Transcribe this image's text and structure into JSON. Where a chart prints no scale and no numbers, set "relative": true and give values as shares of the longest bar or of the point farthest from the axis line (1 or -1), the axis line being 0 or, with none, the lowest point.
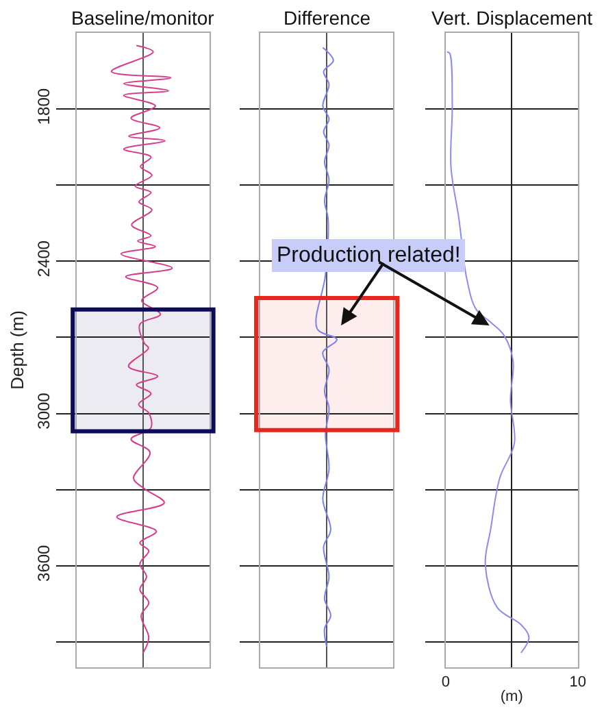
{
  "chart_data": [
    {
      "type": "line",
      "title": "Baseline/monitor",
      "ylabel": "Depth (m)",
      "relative": true,
      "orientation": "horizontal",
      "grid": "y",
      "tick_labels": "y",
      "ylim": [
        4000,
        1500
      ],
      "yticks": [
        1800,
        {
          "value": 2100,
          "label": null
        },
        2400,
        {
          "value": 2700,
          "label": null
        },
        3000,
        {
          "value": 3300,
          "label": null
        },
        3600,
        {
          "value": 3900,
          "label": null
        }
      ],
      "bands": [
        {
          "axis": "y",
          "from": 2590,
          "to": 3070,
          "color": "#0c0c5a"
        }
      ],
      "series": [
        {
          "color": "#d63d8a",
          "x": [
            1550,
            1575,
            1652,
            1677,
            1700,
            1728,
            1746,
            1788,
            1836,
            1874,
            1907,
            1925,
            1958,
            1989,
            2027,
            2061,
            2104,
            2129,
            2166,
            2197,
            2257,
            2299,
            2320,
            2342,
            2371,
            2427,
            2461,
            2504,
            2555,
            2609,
            2648,
            2723,
            2742,
            2814,
            2853,
            2887,
            2921,
            2964,
            2998,
            3056,
            3101,
            3153,
            3255,
            3296,
            3352,
            3407,
            3464,
            3509,
            3541,
            3592,
            3643,
            3694,
            3745,
            3796,
            3883,
            3943
          ],
          "values": [
            -0.21,
            0.32,
            -1.0,
            0.88,
            -0.61,
            0.8,
            -0.61,
            0.39,
            -0.38,
            0.53,
            -0.45,
            0.69,
            -0.61,
            0.25,
            -0.08,
            0.28,
            -0.25,
            0.25,
            -0.13,
            0.28,
            -0.36,
            0.25,
            -0.17,
            0.39,
            -0.7,
            0.92,
            -0.55,
            0.46,
            -0.04,
            0.55,
            -0.1,
            0.04,
            0.17,
            -0.46,
            0.46,
            -0.21,
            0.25,
            -0.14,
            0.18,
            0.25,
            -0.38,
            0.22,
            -0.3,
            0.04,
            0.67,
            -0.83,
            0.42,
            -0.1,
            0.18,
            -0.1,
            0.11,
            -0.1,
            0.18,
            -0.06,
            0.18,
            0
          ]
        }
      ]
    },
    {
      "type": "line",
      "title": "Difference",
      "relative": true,
      "orientation": "horizontal",
      "grid": "y",
      "tick_labels": false,
      "ylim": [
        4000,
        1500
      ],
      "yticks": [
        1800,
        {
          "value": 2100,
          "label": null
        },
        2400,
        {
          "value": 2700,
          "label": null
        },
        3000,
        {
          "value": 3300,
          "label": null
        },
        3600,
        {
          "value": 3900,
          "label": null
        }
      ],
      "bands": [
        {
          "axis": "y",
          "from": 2545,
          "to": 3065,
          "color": "#e8251f"
        }
      ],
      "annotations": [
        "Production related!"
      ],
      "series": [
        {
          "color": "#7b7ff0",
          "x": [
            1558,
            1609,
            1652,
            1703,
            1788,
            1839,
            1890,
            1942,
            2008,
            2079,
            2162,
            2233,
            2453,
            2666,
            2708,
            2759,
            2826,
            2912,
            2979,
            3081,
            3219,
            3337,
            3459,
            3525,
            3643,
            3730,
            3796,
            3848,
            3919
          ],
          "values": [
            -0.39,
            0.65,
            -0.31,
            0.22,
            -0.39,
            0.22,
            -0.31,
            0.22,
            -0.22,
            0.22,
            -0.22,
            0.13,
            -0.13,
            -0.95,
            1.0,
            -0.39,
            0.22,
            -0.22,
            0.22,
            -0.13,
            0.22,
            -0.39,
            0.39,
            -0.31,
            0.22,
            -0.22,
            0.39,
            -0.22,
            0
          ]
        }
      ]
    },
    {
      "type": "line",
      "title": "Vert. Displacement",
      "xlabel": "(m)",
      "orientation": "horizontal",
      "grid": true,
      "tick_labels": "x",
      "ylim": [
        4000,
        1500
      ],
      "yticks": [
        1800,
        {
          "value": 2100,
          "label": null
        },
        2400,
        {
          "value": 2700,
          "label": null
        },
        3000,
        {
          "value": 3300,
          "label": null
        },
        3600,
        {
          "value": 3900,
          "label": null
        }
      ],
      "xlim": [
        0,
        10
      ],
      "xticks": [
        0,
        {
          "value": 5,
          "label": null
        },
        10
      ],
      "series": [
        {
          "color": "#8c8cf0",
          "x": [
            1575,
            1580,
            1788,
            2027,
            2231,
            2469,
            2589,
            2640,
            2691,
            2793,
            2947,
            3117,
            3253,
            3457,
            3594,
            3764,
            3832,
            3883,
            3943
          ],
          "values": [
            0.1,
            0.3,
            0.5,
            0.4,
            1.0,
            1.6,
            2.3,
            3.4,
            4.4,
            5.1,
            4.9,
            5.2,
            4.1,
            3.4,
            3.0,
            3.9,
            5.7,
            6.3,
            5.7
          ]
        }
      ]
    }
  ]
}
